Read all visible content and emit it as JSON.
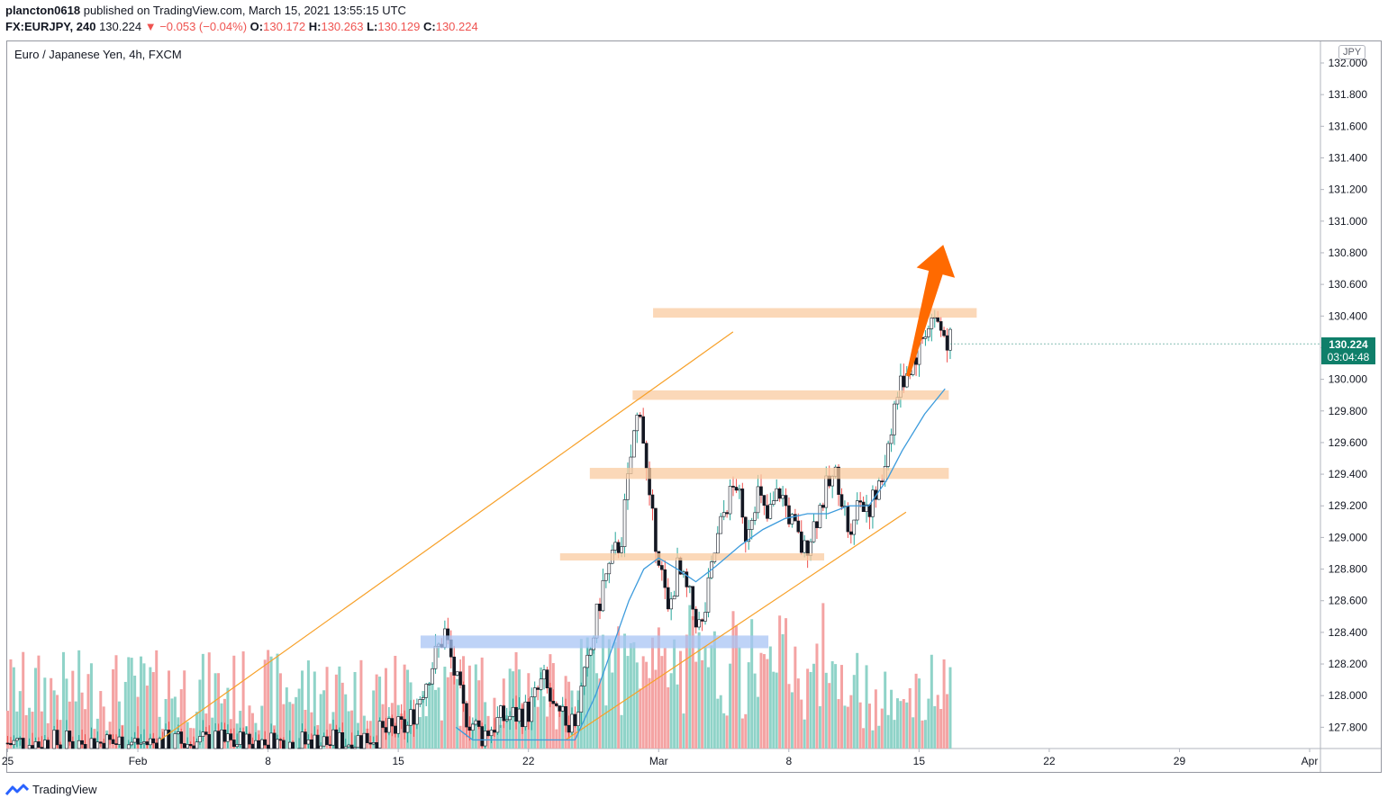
{
  "header": {
    "user": "plancton0618",
    "published": "published on TradingView.com, March 15, 2021 13:55:15 UTC",
    "symbol": "FX:EURJPY, 240",
    "last": "130.224",
    "change": "−0.053 (−0.04%)",
    "o_label": "O:",
    "o_value": "130.172",
    "h_label": "H:",
    "h_value": "130.263",
    "l_label": "L:",
    "l_value": "130.129",
    "c_label": "C:",
    "c_value": "130.224"
  },
  "chart_title": "Euro / Japanese Yen, 4h, FXCM",
  "currency_badge": "JPY",
  "price_tag": {
    "price": "130.224",
    "countdown": "03:04:48"
  },
  "brand": "TradingView",
  "colors": {
    "bull": "#26a69a",
    "bear": "#ef5350",
    "candle_body_down": "#131722",
    "zone": "#f9cba0",
    "zone_blue": "#a8c4f4",
    "trendline": "#f7a028",
    "ma": "#3c9bdc",
    "arrow": "#ff6a00",
    "volume_up": "#8fd3c8",
    "volume_down": "#f4a3a3"
  },
  "chart_data": {
    "type": "candlestick",
    "ylim": [
      127.7,
      132.05
    ],
    "y_ticks": [
      "132.000",
      "131.800",
      "131.600",
      "131.400",
      "131.200",
      "131.000",
      "130.800",
      "130.600",
      "130.400",
      "130.200",
      "130.000",
      "129.800",
      "129.600",
      "129.400",
      "129.200",
      "129.000",
      "128.800",
      "128.600",
      "128.400",
      "128.200",
      "128.000",
      "127.800"
    ],
    "x_ticks": [
      {
        "label": "25",
        "day": 0
      },
      {
        "label": "Feb",
        "day": 7
      },
      {
        "label": "8",
        "day": 14
      },
      {
        "label": "15",
        "day": 21
      },
      {
        "label": "22",
        "day": 28
      },
      {
        "label": "Mar",
        "day": 35
      },
      {
        "label": "8",
        "day": 42
      },
      {
        "label": "15",
        "day": 49
      },
      {
        "label": "22",
        "day": 56
      },
      {
        "label": "29",
        "day": 63
      },
      {
        "label": "Apr",
        "day": 70
      }
    ],
    "zones": [
      {
        "from_day": 34.7,
        "to_day": 52.1,
        "low": 130.39,
        "high": 130.45,
        "color": "orange"
      },
      {
        "from_day": 33.6,
        "to_day": 50.6,
        "low": 129.87,
        "high": 129.93,
        "color": "orange"
      },
      {
        "from_day": 31.3,
        "to_day": 50.6,
        "low": 129.37,
        "high": 129.44,
        "color": "orange"
      },
      {
        "from_day": 29.7,
        "to_day": 43.9,
        "low": 128.86,
        "high": 128.9,
        "color": "orange"
      },
      {
        "from_day": 22.2,
        "to_day": 40.9,
        "low": 128.3,
        "high": 128.38,
        "color": "blue"
      }
    ],
    "trendlines": [
      {
        "from": [
          8.2,
          127.72
        ],
        "to": [
          39.0,
          130.3
        ]
      },
      {
        "from": [
          30.0,
          127.72
        ],
        "to": [
          48.3,
          129.16
        ]
      }
    ],
    "arrow": {
      "from": [
        48.4,
        130.02
      ],
      "to": [
        50.3,
        130.85
      ]
    },
    "ma_line": [
      [
        24.1,
        127.8
      ],
      [
        25.0,
        127.72
      ],
      [
        30.5,
        127.72
      ],
      [
        31.6,
        128.0
      ],
      [
        32.5,
        128.3
      ],
      [
        33.4,
        128.6
      ],
      [
        34.2,
        128.8
      ],
      [
        35.0,
        128.87
      ],
      [
        36.0,
        128.8
      ],
      [
        37.0,
        128.72
      ],
      [
        38.1,
        128.82
      ],
      [
        39.4,
        128.95
      ],
      [
        40.6,
        129.05
      ],
      [
        41.8,
        129.12
      ],
      [
        43.0,
        129.15
      ],
      [
        44.1,
        129.15
      ],
      [
        45.2,
        129.2
      ],
      [
        46.3,
        129.2
      ],
      [
        47.3,
        129.37
      ],
      [
        48.1,
        129.55
      ],
      [
        49.3,
        129.78
      ],
      [
        50.4,
        129.94
      ]
    ],
    "candles_sample": {
      "first_day": 0.0,
      "last_day": 50.7,
      "key_levels": {
        "jan25_low": 127.7,
        "feb26_high": 129.9,
        "mar12_open": 130.0,
        "mar15_high": 130.48,
        "last_close": 130.224
      }
    },
    "candle_path": [
      [
        0,
        127.7
      ],
      [
        6,
        127.7
      ],
      [
        12,
        127.7
      ],
      [
        18,
        127.7
      ],
      [
        21.5,
        127.8
      ],
      [
        22.5,
        128.1
      ],
      [
        23.5,
        128.4
      ],
      [
        24.5,
        127.9
      ],
      [
        25.5,
        127.75
      ],
      [
        26.5,
        127.85
      ],
      [
        28,
        127.9
      ],
      [
        28.8,
        128.1
      ],
      [
        29.5,
        127.85
      ],
      [
        30.5,
        127.85
      ],
      [
        31.2,
        128.2
      ],
      [
        32.0,
        128.7
      ],
      [
        33.0,
        129.0
      ],
      [
        33.6,
        129.6
      ],
      [
        34.0,
        129.85
      ],
      [
        34.5,
        129.2
      ],
      [
        35.0,
        128.9
      ],
      [
        35.5,
        128.5
      ],
      [
        36.0,
        128.8
      ],
      [
        36.7,
        128.6
      ],
      [
        37.3,
        128.4
      ],
      [
        38.0,
        128.9
      ],
      [
        38.6,
        129.2
      ],
      [
        39.2,
        129.35
      ],
      [
        39.6,
        129.0
      ],
      [
        40.3,
        129.3
      ],
      [
        40.8,
        129.1
      ],
      [
        41.5,
        129.3
      ],
      [
        42.3,
        129.05
      ],
      [
        42.8,
        128.9
      ],
      [
        43.4,
        129.1
      ],
      [
        44.0,
        129.3
      ],
      [
        44.6,
        129.4
      ],
      [
        45.2,
        129.05
      ],
      [
        45.8,
        129.25
      ],
      [
        46.4,
        129.2
      ],
      [
        46.9,
        129.3
      ],
      [
        47.4,
        129.65
      ],
      [
        47.8,
        129.9
      ],
      [
        48.3,
        130.05
      ],
      [
        48.8,
        130.15
      ],
      [
        49.3,
        130.3
      ],
      [
        49.8,
        130.4
      ],
      [
        50.2,
        130.3
      ],
      [
        50.7,
        130.224
      ]
    ],
    "volume_visible": true
  }
}
